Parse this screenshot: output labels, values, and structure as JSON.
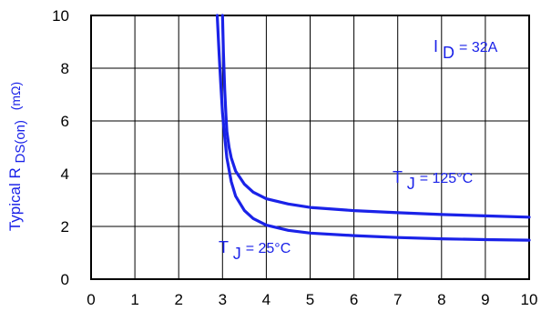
{
  "chart_data": {
    "type": "line",
    "title": "",
    "xlabel": "",
    "ylabel": {
      "main": "Typical R",
      "subscript": "DS(on)",
      "unit": "(mΩ)"
    },
    "xlim": [
      0,
      10
    ],
    "ylim": [
      0,
      10
    ],
    "xticks": [
      "0",
      "1",
      "2",
      "3",
      "4",
      "5",
      "6",
      "7",
      "8",
      "9",
      "10"
    ],
    "yticks": [
      "0",
      "2",
      "4",
      "6",
      "8",
      "10"
    ],
    "grid": true,
    "line_color": "#1a22e8",
    "series": [
      {
        "name": "T_J = 25°C",
        "x": [
          2.88,
          2.92,
          2.96,
          3.0,
          3.05,
          3.1,
          3.2,
          3.3,
          3.5,
          3.7,
          4.0,
          4.5,
          5.0,
          6.0,
          7.0,
          8.0,
          9.0,
          10.0
        ],
        "y": [
          10.0,
          8.6,
          7.4,
          6.3,
          5.4,
          4.6,
          3.7,
          3.15,
          2.6,
          2.3,
          2.05,
          1.85,
          1.75,
          1.65,
          1.58,
          1.53,
          1.5,
          1.48
        ]
      },
      {
        "name": "T_J = 125°C",
        "x": [
          3.0,
          3.02,
          3.05,
          3.08,
          3.1,
          3.15,
          3.2,
          3.3,
          3.5,
          3.7,
          4.0,
          4.5,
          5.0,
          6.0,
          7.0,
          8.0,
          9.0,
          10.0
        ],
        "y": [
          10.0,
          8.6,
          7.2,
          6.2,
          5.6,
          5.0,
          4.6,
          4.1,
          3.6,
          3.3,
          3.05,
          2.85,
          2.72,
          2.6,
          2.52,
          2.45,
          2.4,
          2.35
        ]
      }
    ],
    "annotations": [
      {
        "id": "id-label",
        "main": "I",
        "subscript": "D",
        "rest": " = 32A"
      },
      {
        "id": "tj125-label",
        "main": "T",
        "subscript": "J",
        "rest": " = 125°C"
      },
      {
        "id": "tj25-label",
        "main": "T",
        "subscript": "J",
        "rest": " = 25°C"
      }
    ]
  }
}
